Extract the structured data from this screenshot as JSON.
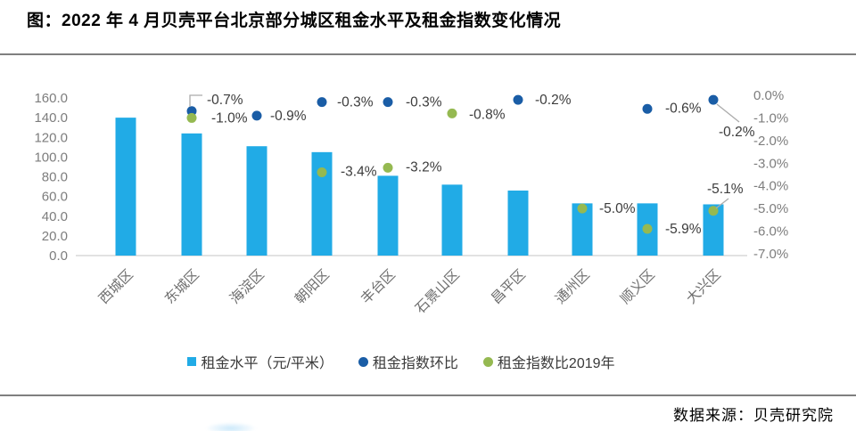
{
  "page": {
    "title": "图：2022 年 4 月贝壳平台北京部分城区租金水平及租金指数变化情况",
    "source_note": "数据来源：贝壳研究院"
  },
  "colors": {
    "bar": "#21ABE6",
    "mom_dot": "#1A5DA6",
    "vs2019_dot": "#95B951",
    "axis_text": "#7D7D7D",
    "category_text": "#6E6E6E",
    "data_label": "#3C3C3C",
    "divider": "#7F7F7F",
    "baseline": "#D9D9D9",
    "callout": "#ABABAB"
  },
  "chart_data": {
    "type": "combo-bar-scatter",
    "title": "2022年4月贝壳平台北京部分城区租金水平及租金指数变化情况",
    "categories": [
      "西城区",
      "东城区",
      "海淀区",
      "朝阳区",
      "丰台区",
      "石景山区",
      "昌平区",
      "通州区",
      "顺义区",
      "大兴区"
    ],
    "series": [
      {
        "name": "租金水平（元/平米）",
        "type": "bar",
        "axis": "left",
        "values": [
          140,
          124,
          111,
          105,
          81,
          72,
          66,
          53,
          53,
          52
        ]
      },
      {
        "name": "租金指数环比",
        "type": "scatter",
        "axis": "right",
        "values": [
          null,
          -0.7,
          -0.9,
          -0.3,
          -0.3,
          null,
          -0.2,
          null,
          -0.6,
          -0.2
        ],
        "point_labels": [
          null,
          "-0.7%",
          "-0.9%",
          "-0.3%",
          "-0.3%",
          null,
          "-0.2%",
          null,
          "-0.6%",
          "-0.2%"
        ]
      },
      {
        "name": "租金指数比2019年",
        "type": "scatter",
        "axis": "right",
        "values": [
          null,
          -1.0,
          null,
          -3.4,
          -3.2,
          -0.8,
          null,
          -5.0,
          -5.9,
          -5.1
        ],
        "point_labels": [
          null,
          "-1.0%",
          null,
          "-3.4%",
          "-3.2%",
          "-0.8%",
          null,
          "-5.0%",
          "-5.9%",
          "-5.1%"
        ]
      }
    ],
    "left_axis": {
      "min": 0,
      "max": 160,
      "tick_labels": [
        "160.0",
        "140.0",
        "120.0",
        "100.0",
        "80.0",
        "60.0",
        "40.0",
        "20.0",
        "0.0"
      ]
    },
    "right_axis": {
      "min": -7,
      "max": 0,
      "tick_labels": [
        "0.0%",
        "-1.0%",
        "-2.0%",
        "-3.0%",
        "-4.0%",
        "-5.0%",
        "-6.0%",
        "-7.0%"
      ]
    },
    "grid": false,
    "legend_position": "bottom"
  }
}
